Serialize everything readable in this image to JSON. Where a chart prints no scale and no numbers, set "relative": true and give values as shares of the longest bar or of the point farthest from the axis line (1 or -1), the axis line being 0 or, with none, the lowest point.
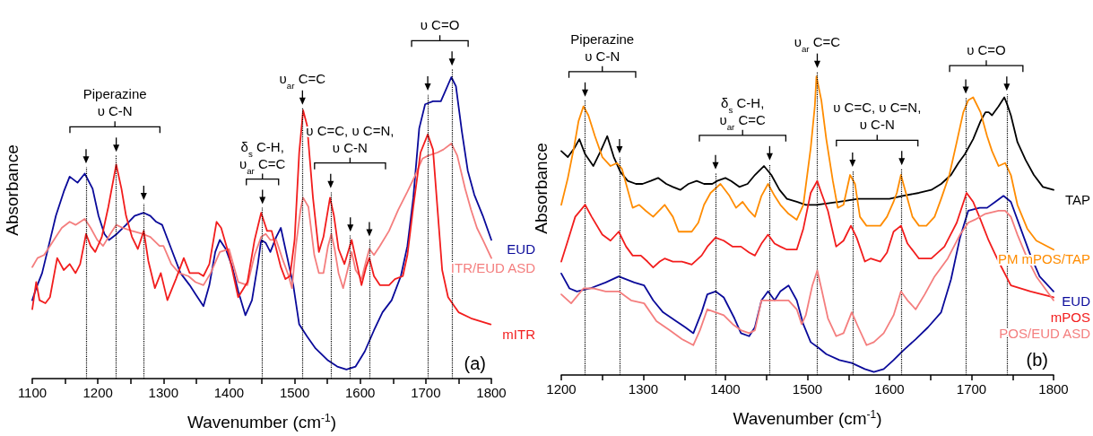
{
  "chart_data": [
    {
      "type": "line",
      "relative": true,
      "xlabel": "Wavenumber (cm$^{-1}$)",
      "ylabel": "Absorbance",
      "xlim": [
        1100,
        1800
      ],
      "xticks": [
        1100,
        {
          "value": 1150,
          "label": null
        },
        1200,
        {
          "value": 1250,
          "label": null
        },
        1300,
        {
          "value": 1350,
          "label": null
        },
        1400,
        {
          "value": 1450,
          "label": null
        },
        1500,
        {
          "value": 1550,
          "label": null
        },
        1600,
        {
          "value": 1650,
          "label": null
        },
        1700,
        {
          "value": 1750,
          "label": null
        },
        1800
      ],
      "tick_labels": "x",
      "marker": "none",
      "line_style": "solid",
      "series": [
        {
          "name": "EUD",
          "color": "#0a0a9a",
          "x": [
            1100,
            1106,
            1115,
            1125,
            1136,
            1148,
            1157,
            1169,
            1180,
            1192,
            1201,
            1210,
            1217,
            1229,
            1243,
            1256,
            1270,
            1280,
            1289,
            1298,
            1312,
            1326,
            1340,
            1349,
            1361,
            1370,
            1379,
            1386,
            1395,
            1405,
            1414,
            1425,
            1435,
            1444,
            1449,
            1456,
            1463,
            1472,
            1479,
            1488,
            1498,
            1507,
            1519,
            1532,
            1551,
            1565,
            1579,
            1593,
            1607,
            1621,
            1634,
            1648,
            1662,
            1672,
            1681,
            1690,
            1699,
            1711,
            1723,
            1729,
            1739,
            1746,
            1755,
            1764,
            1774,
            1787,
            1800
          ],
          "values": [
            0.26,
            0.3,
            0.35,
            0.44,
            0.54,
            0.62,
            0.67,
            0.65,
            0.68,
            0.63,
            0.54,
            0.48,
            0.46,
            0.48,
            0.51,
            0.54,
            0.55,
            0.54,
            0.52,
            0.51,
            0.43,
            0.35,
            0.31,
            0.28,
            0.24,
            0.31,
            0.42,
            0.46,
            0.43,
            0.37,
            0.29,
            0.21,
            0.26,
            0.38,
            0.46,
            0.45,
            0.42,
            0.47,
            0.5,
            0.41,
            0.31,
            0.18,
            0.14,
            0.1,
            0.06,
            0.04,
            0.03,
            0.04,
            0.09,
            0.16,
            0.22,
            0.26,
            0.34,
            0.44,
            0.6,
            0.83,
            0.91,
            0.92,
            0.92,
            0.95,
            1.0,
            0.97,
            0.82,
            0.69,
            0.61,
            0.54,
            0.46
          ]
        },
        {
          "name": "ITR/EUD ASD",
          "color": "#f47e7e",
          "x": [
            1100,
            1108,
            1118,
            1127,
            1136,
            1145,
            1157,
            1166,
            1180,
            1189,
            1199,
            1208,
            1219,
            1228,
            1238,
            1252,
            1268,
            1280,
            1294,
            1300,
            1312,
            1324,
            1338,
            1349,
            1361,
            1372,
            1386,
            1400,
            1414,
            1428,
            1439,
            1449,
            1456,
            1463,
            1472,
            1481,
            1491,
            1496,
            1502,
            1509,
            1513,
            1521,
            1530,
            1537,
            1544,
            1551,
            1556,
            1561,
            1567,
            1574,
            1583,
            1587,
            1593,
            1602,
            1609,
            1614,
            1621,
            1630,
            1644,
            1658,
            1672,
            1683,
            1695,
            1704,
            1718,
            1727,
            1739,
            1748,
            1760,
            1769,
            1778,
            1787,
            1800
          ],
          "values": [
            0.37,
            0.4,
            0.41,
            0.44,
            0.47,
            0.5,
            0.52,
            0.51,
            0.53,
            0.5,
            0.46,
            0.44,
            0.48,
            0.51,
            0.5,
            0.49,
            0.48,
            0.47,
            0.44,
            0.44,
            0.38,
            0.35,
            0.34,
            0.32,
            0.31,
            0.35,
            0.42,
            0.43,
            0.32,
            0.31,
            0.41,
            0.47,
            0.48,
            0.46,
            0.46,
            0.4,
            0.34,
            0.3,
            0.44,
            0.56,
            0.6,
            0.57,
            0.41,
            0.35,
            0.35,
            0.44,
            0.48,
            0.43,
            0.35,
            0.3,
            0.38,
            0.42,
            0.36,
            0.33,
            0.39,
            0.43,
            0.41,
            0.44,
            0.49,
            0.56,
            0.62,
            0.67,
            0.73,
            0.74,
            0.75,
            0.76,
            0.78,
            0.74,
            0.63,
            0.56,
            0.5,
            0.46,
            0.4
          ]
        },
        {
          "name": "mITR",
          "color": "#f21d1d",
          "x": [
            1100,
            1106,
            1111,
            1120,
            1127,
            1138,
            1148,
            1157,
            1166,
            1173,
            1182,
            1189,
            1196,
            1206,
            1216,
            1228,
            1236,
            1243,
            1252,
            1261,
            1270,
            1277,
            1287,
            1296,
            1306,
            1319,
            1331,
            1340,
            1354,
            1361,
            1370,
            1381,
            1388,
            1400,
            1414,
            1428,
            1439,
            1449,
            1458,
            1465,
            1472,
            1479,
            1486,
            1493,
            1500,
            1507,
            1513,
            1519,
            1528,
            1537,
            1544,
            1554,
            1560,
            1567,
            1576,
            1587,
            1593,
            1602,
            1609,
            1614,
            1621,
            1630,
            1644,
            1653,
            1665,
            1672,
            1681,
            1692,
            1703,
            1711,
            1718,
            1725,
            1734,
            1750,
            1769,
            1799
          ],
          "values": [
            0.23,
            0.32,
            0.26,
            0.25,
            0.27,
            0.4,
            0.36,
            0.38,
            0.35,
            0.38,
            0.48,
            0.44,
            0.42,
            0.47,
            0.57,
            0.71,
            0.63,
            0.54,
            0.47,
            0.43,
            0.49,
            0.39,
            0.3,
            0.35,
            0.26,
            0.33,
            0.4,
            0.35,
            0.35,
            0.34,
            0.38,
            0.52,
            0.5,
            0.41,
            0.27,
            0.32,
            0.46,
            0.55,
            0.49,
            0.49,
            0.43,
            0.37,
            0.33,
            0.34,
            0.46,
            0.75,
            0.89,
            0.84,
            0.6,
            0.42,
            0.47,
            0.6,
            0.54,
            0.43,
            0.38,
            0.46,
            0.4,
            0.31,
            0.37,
            0.4,
            0.34,
            0.31,
            0.31,
            0.33,
            0.34,
            0.41,
            0.57,
            0.75,
            0.81,
            0.76,
            0.56,
            0.36,
            0.27,
            0.22,
            0.2,
            0.18
          ]
        }
      ],
      "ref_lines": [
        {
          "axis": "x",
          "value": 1182,
          "line_style": "dotted"
        },
        {
          "axis": "x",
          "value": 1228,
          "line_style": "dotted"
        },
        {
          "axis": "x",
          "value": 1270,
          "line_style": "dotted"
        },
        {
          "axis": "x",
          "value": 1451,
          "line_style": "dotted"
        },
        {
          "axis": "x",
          "value": 1512,
          "line_style": "dotted"
        },
        {
          "axis": "x",
          "value": 1555,
          "line_style": "dotted"
        },
        {
          "axis": "x",
          "value": 1585,
          "line_style": "dotted"
        },
        {
          "axis": "x",
          "value": 1614,
          "line_style": "dotted"
        },
        {
          "axis": "x",
          "value": 1703,
          "line_style": "dotted"
        },
        {
          "axis": "x",
          "value": 1740,
          "line_style": "dotted"
        }
      ],
      "annotations": [
        "Piperazine\nυ C-N",
        "δ$_{s}$ C-H,\nυ$_{ar}$ C=C",
        "υ$_{ar}$ C=C",
        "υ C=C, υ C=N,\nυ C-N",
        "υ C=O",
        "(a)"
      ]
    },
    {
      "type": "line",
      "relative": true,
      "xlabel": "Wavenumber (cm$^{-1}$)",
      "ylabel": "Absorbance",
      "xlim": [
        1200,
        1800
      ],
      "xticks": [
        1200,
        {
          "value": 1250,
          "label": null
        },
        1300,
        {
          "value": 1350,
          "label": null
        },
        1400,
        {
          "value": 1450,
          "label": null
        },
        1500,
        {
          "value": 1550,
          "label": null
        },
        1600,
        {
          "value": 1650,
          "label": null
        },
        1700,
        {
          "value": 1750,
          "label": null
        },
        1800
      ],
      "tick_labels": "x",
      "marker": "none",
      "line_style": "solid",
      "series": [
        {
          "name": "TAP",
          "color": "#000000",
          "x": [
            1200,
            1208,
            1216,
            1222,
            1229,
            1239,
            1248,
            1256,
            1264,
            1272,
            1281,
            1291,
            1299,
            1309,
            1318,
            1328,
            1336,
            1345,
            1355,
            1365,
            1374,
            1384,
            1390,
            1400,
            1407,
            1417,
            1427,
            1436,
            1447,
            1456,
            1466,
            1475,
            1487,
            1498,
            1511,
            1539,
            1562,
            1600,
            1616,
            1636,
            1651,
            1663,
            1675,
            1684,
            1692,
            1702,
            1711,
            1717,
            1721,
            1725,
            1733,
            1740,
            1743,
            1748,
            1756,
            1766,
            1776,
            1787,
            1800
          ],
          "values": [
            0.75,
            0.73,
            0.76,
            0.79,
            0.74,
            0.7,
            0.75,
            0.8,
            0.73,
            0.68,
            0.65,
            0.64,
            0.64,
            0.65,
            0.66,
            0.64,
            0.63,
            0.62,
            0.64,
            0.65,
            0.64,
            0.64,
            0.65,
            0.66,
            0.65,
            0.63,
            0.64,
            0.67,
            0.7,
            0.67,
            0.62,
            0.59,
            0.58,
            0.57,
            0.57,
            0.58,
            0.59,
            0.59,
            0.6,
            0.61,
            0.62,
            0.64,
            0.67,
            0.71,
            0.74,
            0.79,
            0.85,
            0.88,
            0.88,
            0.87,
            0.9,
            0.93,
            0.91,
            0.87,
            0.78,
            0.72,
            0.67,
            0.63,
            0.62
          ]
        },
        {
          "name": "PM mPOS/TAP",
          "color": "#ff8c00",
          "x": [
            1200,
            1208,
            1216,
            1221,
            1227,
            1233,
            1241,
            1250,
            1260,
            1268,
            1274,
            1281,
            1287,
            1295,
            1303,
            1312,
            1326,
            1336,
            1343,
            1359,
            1367,
            1374,
            1382,
            1394,
            1405,
            1413,
            1421,
            1429,
            1436,
            1444,
            1452,
            1460,
            1467,
            1477,
            1487,
            1495,
            1504,
            1509,
            1511,
            1517,
            1523,
            1531,
            1537,
            1544,
            1552,
            1558,
            1564,
            1572,
            1581,
            1589,
            1597,
            1605,
            1609,
            1614,
            1620,
            1628,
            1636,
            1645,
            1655,
            1663,
            1673,
            1682,
            1690,
            1696,
            1702,
            1711,
            1719,
            1725,
            1733,
            1741,
            1748,
            1756,
            1768,
            1779,
            1800
          ],
          "values": [
            0.57,
            0.66,
            0.77,
            0.85,
            0.9,
            0.87,
            0.8,
            0.73,
            0.7,
            0.71,
            0.69,
            0.62,
            0.56,
            0.57,
            0.55,
            0.53,
            0.57,
            0.53,
            0.48,
            0.48,
            0.51,
            0.57,
            0.61,
            0.64,
            0.6,
            0.56,
            0.58,
            0.55,
            0.53,
            0.6,
            0.64,
            0.6,
            0.57,
            0.54,
            0.52,
            0.57,
            0.76,
            0.9,
            1.0,
            0.92,
            0.79,
            0.65,
            0.56,
            0.57,
            0.67,
            0.64,
            0.53,
            0.5,
            0.5,
            0.5,
            0.53,
            0.58,
            0.61,
            0.67,
            0.61,
            0.53,
            0.5,
            0.5,
            0.53,
            0.59,
            0.67,
            0.78,
            0.88,
            0.92,
            0.93,
            0.88,
            0.8,
            0.75,
            0.7,
            0.71,
            0.67,
            0.57,
            0.49,
            0.45,
            0.42
          ]
        },
        {
          "name": "EUD",
          "color": "#0a0a9a",
          "x": [
            1200,
            1210,
            1219,
            1235,
            1254,
            1270,
            1289,
            1301,
            1312,
            1324,
            1340,
            1351,
            1361,
            1371,
            1378,
            1388,
            1398,
            1411,
            1419,
            1429,
            1436,
            1444,
            1452,
            1460,
            1467,
            1477,
            1487,
            1495,
            1504,
            1514,
            1523,
            1539,
            1554,
            1570,
            1581,
            1593,
            1605,
            1616,
            1632,
            1647,
            1663,
            1675,
            1686,
            1696,
            1710,
            1719,
            1729,
            1739,
            1748,
            1760,
            1772,
            1783,
            1800
          ],
          "values": [
            0.34,
            0.29,
            0.28,
            0.29,
            0.31,
            0.33,
            0.31,
            0.3,
            0.25,
            0.21,
            0.18,
            0.16,
            0.14,
            0.21,
            0.27,
            0.28,
            0.26,
            0.19,
            0.14,
            0.13,
            0.16,
            0.25,
            0.28,
            0.25,
            0.28,
            0.3,
            0.25,
            0.17,
            0.11,
            0.09,
            0.07,
            0.05,
            0.04,
            0.02,
            0.01,
            0.02,
            0.05,
            0.08,
            0.12,
            0.16,
            0.21,
            0.32,
            0.46,
            0.55,
            0.56,
            0.56,
            0.58,
            0.6,
            0.58,
            0.49,
            0.4,
            0.33,
            0.28
          ]
        },
        {
          "name": "mPOS",
          "color": "#f21d1d",
          "x": [
            1200,
            1208,
            1217,
            1229,
            1237,
            1250,
            1260,
            1270,
            1279,
            1287,
            1297,
            1305,
            1312,
            1320,
            1326,
            1336,
            1347,
            1359,
            1371,
            1378,
            1388,
            1398,
            1409,
            1419,
            1429,
            1436,
            1444,
            1452,
            1460,
            1467,
            1475,
            1487,
            1495,
            1504,
            1512,
            1517,
            1525,
            1535,
            1544,
            1553,
            1560,
            1570,
            1577,
            1589,
            1597,
            1605,
            1614,
            1622,
            1636,
            1651,
            1667,
            1682,
            1694,
            1702,
            1711,
            1721,
            1733,
            1748,
            1772,
            1800
          ],
          "values": [
            0.38,
            0.45,
            0.53,
            0.57,
            0.53,
            0.47,
            0.45,
            0.48,
            0.43,
            0.4,
            0.4,
            0.38,
            0.36,
            0.38,
            0.39,
            0.38,
            0.38,
            0.37,
            0.4,
            0.43,
            0.46,
            0.45,
            0.43,
            0.43,
            0.41,
            0.4,
            0.44,
            0.47,
            0.44,
            0.43,
            0.42,
            0.42,
            0.49,
            0.61,
            0.65,
            0.61,
            0.55,
            0.43,
            0.45,
            0.5,
            0.46,
            0.38,
            0.39,
            0.38,
            0.41,
            0.48,
            0.5,
            0.44,
            0.39,
            0.39,
            0.43,
            0.51,
            0.61,
            0.58,
            0.52,
            0.45,
            0.38,
            0.3,
            0.28,
            0.26
          ]
        },
        {
          "name": "POS/EUD ASD",
          "color": "#f47e7e",
          "x": [
            1200,
            1212,
            1227,
            1239,
            1254,
            1270,
            1285,
            1301,
            1316,
            1332,
            1347,
            1361,
            1369,
            1378,
            1388,
            1398,
            1409,
            1419,
            1429,
            1436,
            1444,
            1456,
            1467,
            1477,
            1487,
            1493,
            1498,
            1506,
            1512,
            1517,
            1525,
            1535,
            1544,
            1554,
            1562,
            1572,
            1581,
            1593,
            1605,
            1614,
            1622,
            1632,
            1643,
            1655,
            1671,
            1686,
            1696,
            1704,
            1717,
            1733,
            1741,
            1748,
            1756,
            1768,
            1779,
            1800
          ],
          "values": [
            0.27,
            0.24,
            0.29,
            0.29,
            0.28,
            0.28,
            0.25,
            0.24,
            0.18,
            0.15,
            0.12,
            0.1,
            0.15,
            0.22,
            0.21,
            0.2,
            0.17,
            0.15,
            0.14,
            0.15,
            0.25,
            0.25,
            0.25,
            0.25,
            0.22,
            0.17,
            0.2,
            0.3,
            0.35,
            0.29,
            0.19,
            0.13,
            0.14,
            0.21,
            0.16,
            0.1,
            0.11,
            0.14,
            0.2,
            0.28,
            0.25,
            0.22,
            0.27,
            0.33,
            0.39,
            0.47,
            0.51,
            0.52,
            0.54,
            0.55,
            0.55,
            0.53,
            0.47,
            0.39,
            0.33,
            0.25
          ]
        }
      ],
      "ref_lines": [
        {
          "axis": "x",
          "value": 1229,
          "line_style": "dotted"
        },
        {
          "axis": "x",
          "value": 1271,
          "line_style": "dotted"
        },
        {
          "axis": "x",
          "value": 1388,
          "line_style": "dotted"
        },
        {
          "axis": "x",
          "value": 1454,
          "line_style": "dotted"
        },
        {
          "axis": "x",
          "value": 1512,
          "line_style": "dotted"
        },
        {
          "axis": "x",
          "value": 1555,
          "line_style": "dotted"
        },
        {
          "axis": "x",
          "value": 1615,
          "line_style": "dotted"
        },
        {
          "axis": "x",
          "value": 1693,
          "line_style": "dotted"
        },
        {
          "axis": "x",
          "value": 1743,
          "line_style": "dotted"
        }
      ],
      "annotations": [
        "Piperazine\nυ C-N",
        "δ$_{s}$ C-H,\nυ$_{ar}$ C=C",
        "υ$_{ar}$ C=C",
        "υ C=C, υ C=N,\nυ C-N",
        "υ C=O",
        "(b)"
      ]
    }
  ]
}
